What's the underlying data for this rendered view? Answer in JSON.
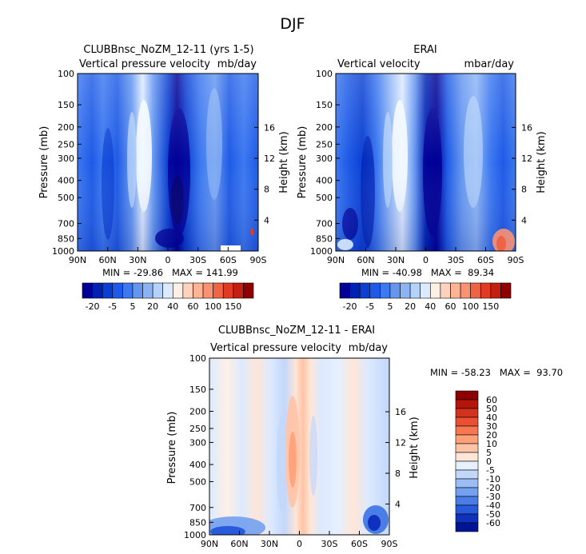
{
  "figure": {
    "title": "DJF"
  },
  "chart_data": [
    {
      "id": "model",
      "type": "heatmap",
      "title": "CLUBBnsc_NoZM_12-11 (yrs 1-5)",
      "subtitle_left": "Vertical pressure velocity",
      "subtitle_right": "mb/day",
      "xlabel": "",
      "ylabel": "Pressure (mb)",
      "y2label": "Height (km)",
      "x_ticks": [
        "90N",
        "60N",
        "30N",
        "0",
        "30S",
        "60S",
        "90S"
      ],
      "y_ticks": [
        "100",
        "150",
        "200",
        "250",
        "300",
        "400",
        "500",
        "700",
        "850",
        "1000"
      ],
      "y2_ticks": [
        "16",
        "12",
        "8",
        "4"
      ],
      "ylim": [
        1000,
        100
      ],
      "y_scale": "log",
      "stats": "MIN = -29.86   MAX = 141.99",
      "min": -29.86,
      "max": 141.99,
      "colorbar": {
        "labels": [
          "-20",
          "-5",
          "5",
          "20",
          "40",
          "60",
          "100",
          "150"
        ],
        "colors": [
          "#000096",
          "#0022b4",
          "#0a3fd2",
          "#1e5ae6",
          "#3c78f0",
          "#6496f0",
          "#8cb4f5",
          "#b4d2fa",
          "#dceaff",
          "#fff0e6",
          "#ffd2be",
          "#ffb496",
          "#fa9173",
          "#f06446",
          "#e13c23",
          "#c31e0f",
          "#910000"
        ]
      }
    },
    {
      "id": "obs",
      "type": "heatmap",
      "title": "ERAI",
      "subtitle_left": "Vertical velocity",
      "subtitle_right": "mbar/day",
      "xlabel": "",
      "ylabel": "Pressure (mb)",
      "y2label": "Height (km)",
      "x_ticks": [
        "90N",
        "60N",
        "30N",
        "0",
        "30S",
        "60S",
        "90S"
      ],
      "y_ticks": [
        "100",
        "150",
        "200",
        "250",
        "300",
        "400",
        "500",
        "700",
        "850",
        "1000"
      ],
      "y2_ticks": [
        "16",
        "12",
        "8",
        "4"
      ],
      "ylim": [
        1000,
        100
      ],
      "y_scale": "log",
      "stats": "MIN = -40.98   MAX =  89.34",
      "min": -40.98,
      "max": 89.34,
      "colorbar": {
        "labels": [
          "-20",
          "-5",
          "5",
          "20",
          "40",
          "60",
          "100",
          "150"
        ],
        "colors": [
          "#000096",
          "#0022b4",
          "#0a3fd2",
          "#1e5ae6",
          "#3c78f0",
          "#6496f0",
          "#8cb4f5",
          "#b4d2fa",
          "#dceaff",
          "#fff0e6",
          "#ffd2be",
          "#ffb496",
          "#fa9173",
          "#f06446",
          "#e13c23",
          "#c31e0f",
          "#910000"
        ]
      }
    },
    {
      "id": "diff",
      "type": "heatmap",
      "title": "CLUBBnsc_NoZM_12-11 - ERAI",
      "subtitle_left": "Vertical pressure velocity",
      "subtitle_right": "mb/day",
      "xlabel": "",
      "ylabel": "Pressure (mb)",
      "y2label": "Height (km)",
      "x_ticks": [
        "90N",
        "60N",
        "30N",
        "0",
        "30S",
        "60S",
        "90S"
      ],
      "y_ticks": [
        "100",
        "150",
        "200",
        "250",
        "300",
        "400",
        "500",
        "700",
        "850",
        "1000"
      ],
      "y2_ticks": [
        "16",
        "12",
        "8",
        "4"
      ],
      "ylim": [
        1000,
        100
      ],
      "y_scale": "log",
      "stats": "MIN = -58.23   MAX =  93.70",
      "min": -58.23,
      "max": 93.7,
      "colorbar": {
        "labels": [
          "60",
          "50",
          "40",
          "30",
          "20",
          "10",
          "5",
          "0",
          "-5",
          "-10",
          "-20",
          "-30",
          "-40",
          "-50",
          "-60"
        ],
        "colors": [
          "#8c0000",
          "#b4140a",
          "#d2321e",
          "#eb5032",
          "#f77850",
          "#ffa078",
          "#ffc3a5",
          "#ffe6d7",
          "#e6f0ff",
          "#c3d7fa",
          "#9bbef5",
          "#73a0f0",
          "#4b7de6",
          "#285adc",
          "#0f32be",
          "#001496"
        ]
      }
    }
  ]
}
